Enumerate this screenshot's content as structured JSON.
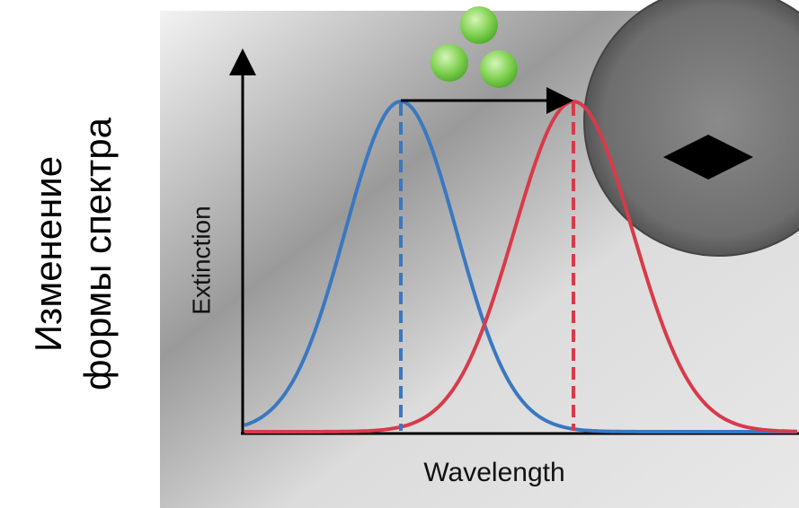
{
  "side_text": {
    "lines": [
      "Изменение",
      "формы спектра"
    ]
  },
  "diagram": {
    "y_axis_label": "Extinction",
    "x_axis_label": "Wavelength"
  }
}
